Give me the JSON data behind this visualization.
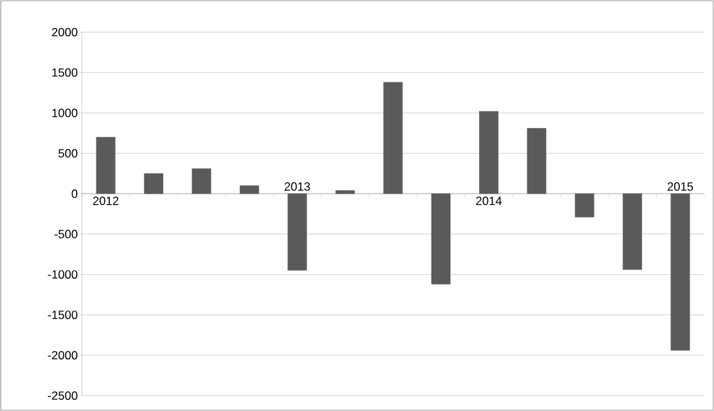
{
  "chart_data": {
    "type": "bar",
    "categories": [
      "2012",
      null,
      null,
      null,
      "2013",
      null,
      null,
      null,
      "2014",
      null,
      null,
      null,
      "2015"
    ],
    "values": [
      700,
      250,
      310,
      100,
      -950,
      40,
      1380,
      -1120,
      1020,
      810,
      -290,
      -940,
      -1940
    ],
    "color": "#5a5a5a",
    "ylim": [
      -2500,
      2000
    ],
    "yticks": [
      -2500,
      -2000,
      -1500,
      -1000,
      -500,
      0,
      500,
      1000,
      1500,
      2000
    ],
    "grid": "y"
  }
}
